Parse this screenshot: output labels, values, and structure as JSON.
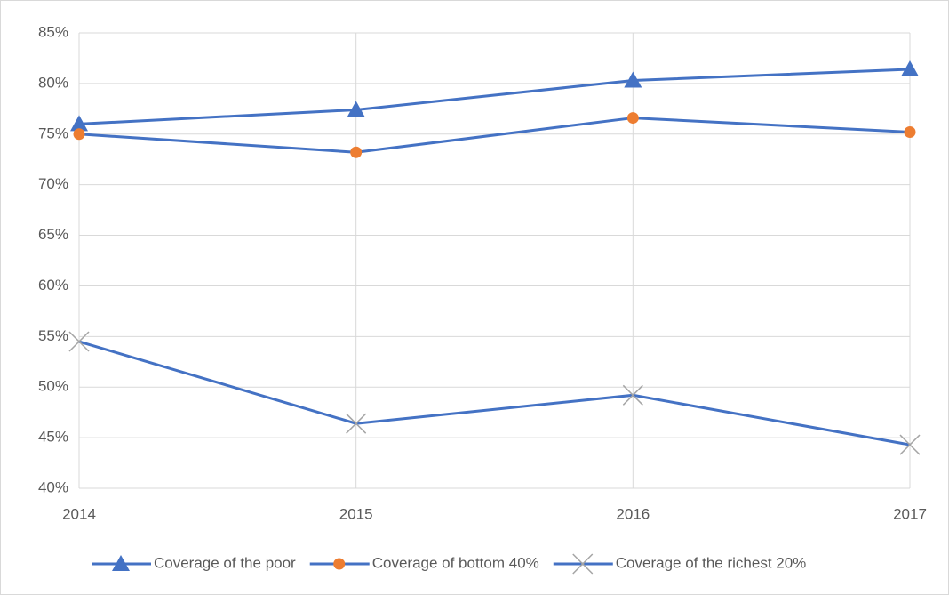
{
  "chart_data": {
    "type": "line",
    "x": [
      2014,
      2015,
      2016,
      2017
    ],
    "xlim": [
      2014,
      2017
    ],
    "xticks": [
      2014,
      2015,
      2016,
      2017
    ],
    "ylim": [
      40,
      85
    ],
    "yticks": [
      {
        "value": 40,
        "label": "40%"
      },
      {
        "value": 45,
        "label": "45%"
      },
      {
        "value": 50,
        "label": "50%"
      },
      {
        "value": 55,
        "label": "55%"
      },
      {
        "value": 60,
        "label": "60%"
      },
      {
        "value": 65,
        "label": "65%"
      },
      {
        "value": 70,
        "label": "70%"
      },
      {
        "value": 75,
        "label": "75%"
      },
      {
        "value": 80,
        "label": "80%"
      },
      {
        "value": 85,
        "label": "85%"
      }
    ],
    "grid": true,
    "legend": "bottom",
    "series": [
      {
        "name": "Coverage of the poor",
        "color": "#4472c4",
        "marker": "triangle",
        "marker_color": "#4472c4",
        "values": [
          76.0,
          77.4,
          80.3,
          81.4
        ]
      },
      {
        "name": "Coverage of bottom 40%",
        "color": "#4472c4",
        "marker": "circle",
        "marker_color": "#ed7d31",
        "values": [
          75.0,
          73.2,
          76.6,
          75.2
        ]
      },
      {
        "name": "Coverage of the richest 20%",
        "color": "#4472c4",
        "marker": "x",
        "marker_color": "#a5a5a5",
        "values": [
          54.5,
          46.4,
          49.2,
          44.3
        ]
      }
    ]
  }
}
